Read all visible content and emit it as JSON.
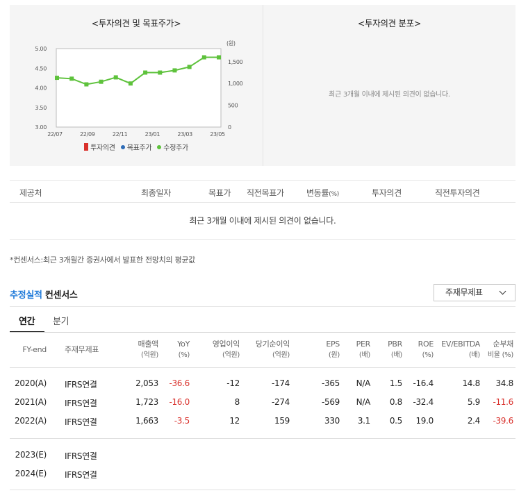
{
  "chart_panel": {
    "title": "<투자의견 및 목표주가>",
    "unit": "(원)",
    "legend": [
      {
        "label": "투자의견",
        "color": "#d9302b",
        "shape": "bar"
      },
      {
        "label": "목표주가",
        "color": "#2f6db7",
        "shape": "dot"
      },
      {
        "label": "수정주가",
        "color": "#5ec23c",
        "shape": "dot"
      }
    ]
  },
  "distribution_panel": {
    "title": "<투자의견 분포>",
    "empty_text": "최근 3개월 이내에 제시된 의견이 없습니다."
  },
  "chart_data": {
    "type": "line",
    "title": "<투자의견 및 목표주가>",
    "x_ticks": [
      "22/07",
      "22/09",
      "22/11",
      "23/01",
      "23/03",
      "23/05"
    ],
    "left_axis": {
      "ticks": [
        "5.00",
        "4.50",
        "4.00",
        "3.50",
        "3.00"
      ],
      "ylim": [
        3.0,
        5.0
      ]
    },
    "right_axis": {
      "ticks": [
        "1,500",
        "1,000",
        "500",
        "0"
      ],
      "ylim": [
        0,
        1800
      ],
      "unit": "(원)"
    },
    "series": [
      {
        "name": "수정주가",
        "color": "#5ec23c",
        "axis": "right",
        "values": [
          1130,
          1110,
          980,
          1040,
          1140,
          1000,
          1250,
          1250,
          1300,
          1380,
          1600,
          1600
        ]
      }
    ]
  },
  "opinion_table": {
    "headers": [
      "제공처",
      "최종일자",
      "목표가",
      "직전목표가",
      "변동률",
      "(%)",
      "투자의견",
      "직전투자의견"
    ],
    "empty_text": "최근 3개월 이내에 제시된 의견이 없습니다."
  },
  "footnote": "*컨센서스:최근 3개월간 증권사에서 발표한 전망치의 평균값",
  "section": {
    "accent": "추정실적",
    "title": "컨센서스"
  },
  "select": {
    "value": "주재무제표"
  },
  "tabs": {
    "annual": "연간",
    "quarter": "분기"
  },
  "fin_table": {
    "headers": [
      {
        "l1": "FY-end",
        "l2": ""
      },
      {
        "l1": "주재무제표",
        "l2": ""
      },
      {
        "l1": "매출액",
        "l2": "(억원)"
      },
      {
        "l1": "YoY",
        "l2": "(%)"
      },
      {
        "l1": "영업이익",
        "l2": "(억원)"
      },
      {
        "l1": "당기순이익",
        "l2": "(억원)"
      },
      {
        "l1": "EPS",
        "l2": "(원)"
      },
      {
        "l1": "PER",
        "l2": "(배)"
      },
      {
        "l1": "PBR",
        "l2": "(배)"
      },
      {
        "l1": "ROE",
        "l2": "(%)"
      },
      {
        "l1": "EV/EBITDA",
        "l2": "(배)"
      },
      {
        "l1": "순부채",
        "l2": "비율 (%)"
      }
    ],
    "rows": [
      {
        "fy": "2020(A)",
        "basis": "IFRS연결",
        "sales": "2,053",
        "yoy": "-36.6",
        "op": "-12",
        "net": "-174",
        "eps": "-365",
        "per": "N/A",
        "pbr": "1.5",
        "roe": "-16.4",
        "ev": "14.8",
        "debt": "34.8"
      },
      {
        "fy": "2021(A)",
        "basis": "IFRS연결",
        "sales": "1,723",
        "yoy": "-16.0",
        "op": "8",
        "net": "-274",
        "eps": "-569",
        "per": "N/A",
        "pbr": "0.8",
        "roe": "-32.4",
        "ev": "5.9",
        "debt": "-11.6"
      },
      {
        "fy": "2022(A)",
        "basis": "IFRS연결",
        "sales": "1,663",
        "yoy": "-3.5",
        "op": "12",
        "net": "159",
        "eps": "330",
        "per": "3.1",
        "pbr": "0.5",
        "roe": "19.0",
        "ev": "2.4",
        "debt": "-39.6"
      },
      {
        "fy": "2023(E)",
        "basis": "IFRS연결",
        "sales": "",
        "yoy": "",
        "op": "",
        "net": "",
        "eps": "",
        "per": "",
        "pbr": "",
        "roe": "",
        "ev": "",
        "debt": ""
      },
      {
        "fy": "2024(E)",
        "basis": "IFRS연결",
        "sales": "",
        "yoy": "",
        "op": "",
        "net": "",
        "eps": "",
        "per": "",
        "pbr": "",
        "roe": "",
        "ev": "",
        "debt": ""
      }
    ]
  }
}
